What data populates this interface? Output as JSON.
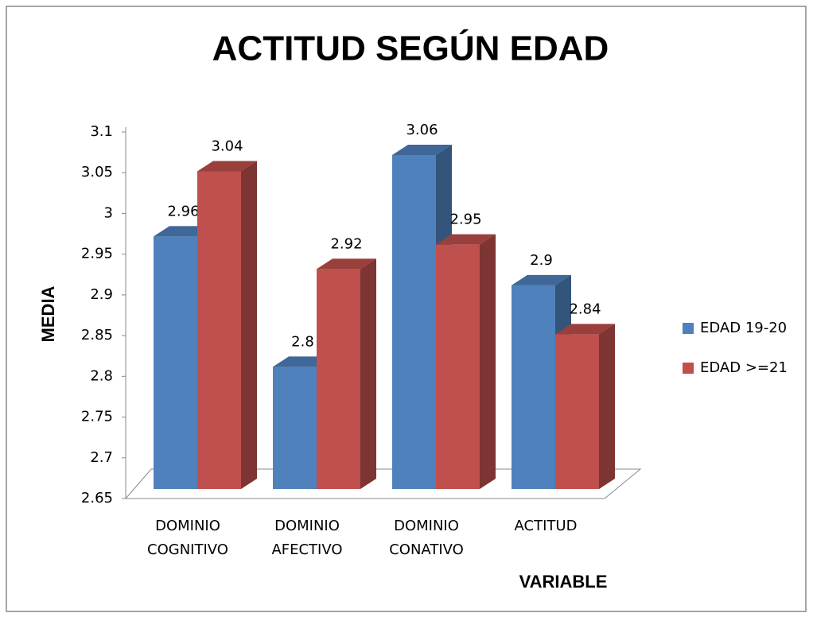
{
  "chart_data": {
    "type": "bar3d",
    "title": "ACTITUD SEGÚN EDAD",
    "categories": [
      "DOMINIO COGNITIVO",
      "DOMINIO AFECTIVO",
      "DOMINIO CONATIVO",
      "ACTITUD"
    ],
    "series": [
      {
        "name": "EDAD 19-20",
        "color": "#4f81bd",
        "values": [
          2.96,
          2.8,
          3.06,
          2.9
        ]
      },
      {
        "name": "EDAD >=21",
        "color": "#c0504d",
        "values": [
          3.04,
          2.92,
          2.95,
          2.84
        ]
      }
    ],
    "ylim": [
      2.65,
      3.1
    ],
    "yticks": [
      2.65,
      2.7,
      2.75,
      2.8,
      2.85,
      2.9,
      2.95,
      3,
      3.05,
      3.1
    ],
    "xlabel": "VARIABLE",
    "ylabel": "MEDIA",
    "legend": "right"
  }
}
